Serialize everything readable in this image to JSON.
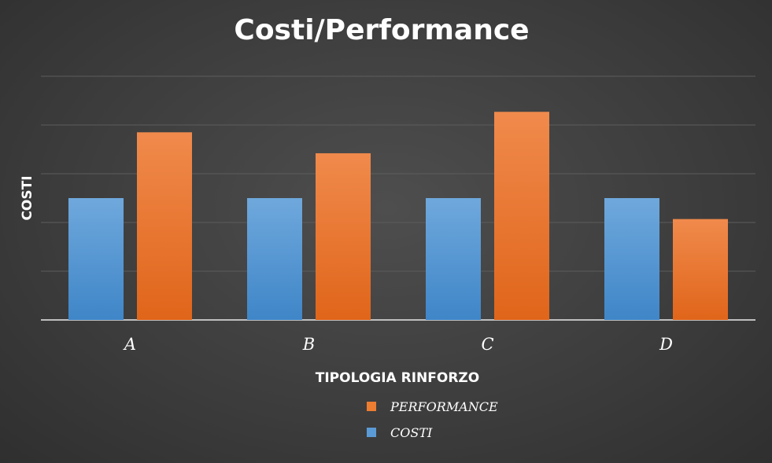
{
  "chart_data": {
    "type": "bar",
    "title": "Costi/Performance",
    "xlabel": "TIPOLOGIA RINFORZO",
    "ylabel": "COSTI",
    "categories": [
      "A",
      "B",
      "C",
      "D"
    ],
    "series": [
      {
        "name": "COSTI",
        "values": [
          2.5,
          2.5,
          2.5,
          2.5
        ],
        "color": "#5b9bd5"
      },
      {
        "name": "PERFORMANCE",
        "values": [
          3.85,
          3.42,
          4.27,
          2.07
        ],
        "color": "#ed7d31"
      }
    ],
    "ylim": [
      0,
      5
    ],
    "grid": true,
    "y_tick_labels_shown": false,
    "legend_order": [
      "PERFORMANCE",
      "COSTI"
    ],
    "legend_position": "bottom"
  }
}
